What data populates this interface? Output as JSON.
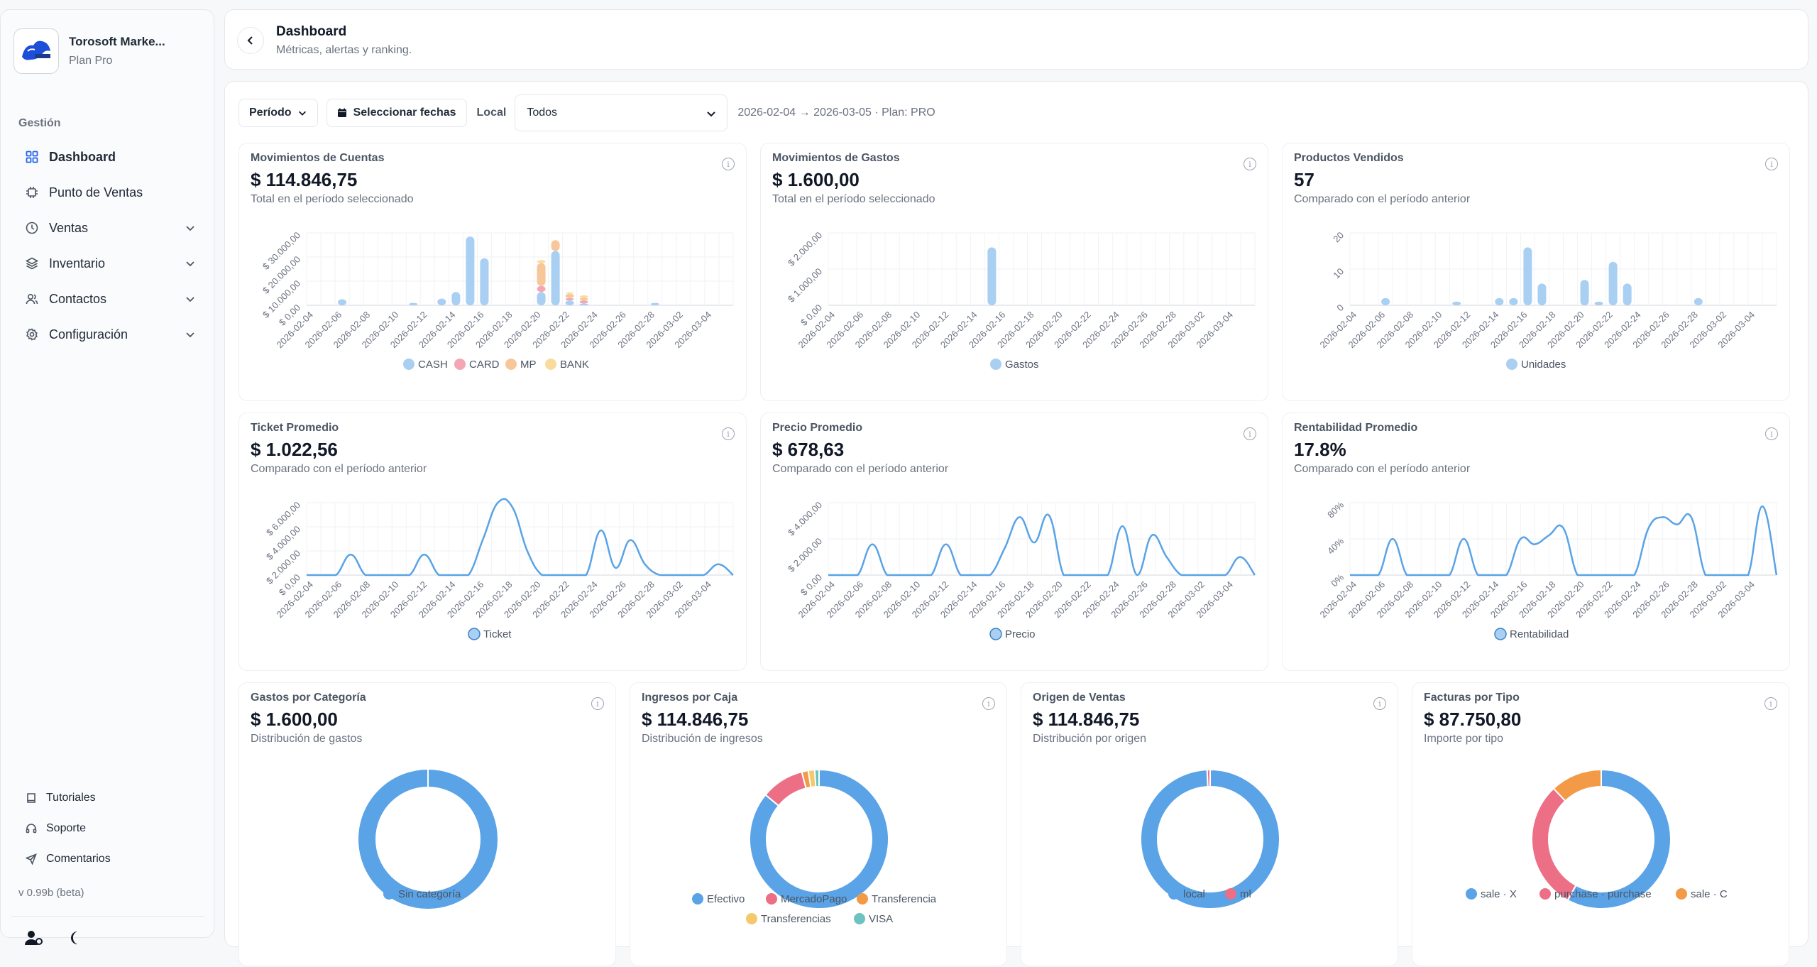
{
  "sidebar": {
    "brand_name": "Torosoft Marke...",
    "brand_plan": "Plan Pro",
    "section": "Gestión",
    "items": [
      {
        "label": "Dashboard",
        "icon": "grid-icon",
        "active": true,
        "expandable": false
      },
      {
        "label": "Punto de Ventas",
        "icon": "cpu-icon",
        "active": false,
        "expandable": false
      },
      {
        "label": "Ventas",
        "icon": "clock-icon",
        "active": false,
        "expandable": true
      },
      {
        "label": "Inventario",
        "icon": "layers-icon",
        "active": false,
        "expandable": true
      },
      {
        "label": "Contactos",
        "icon": "users-icon",
        "active": false,
        "expandable": true
      },
      {
        "label": "Configuración",
        "icon": "gear-icon",
        "active": false,
        "expandable": true
      }
    ],
    "footer": [
      {
        "label": "Tutoriales",
        "icon": "book-icon"
      },
      {
        "label": "Soporte",
        "icon": "headset-icon"
      },
      {
        "label": "Comentarios",
        "icon": "send-icon"
      }
    ],
    "version": "v 0.99b (beta)"
  },
  "header": {
    "title": "Dashboard",
    "subtitle": "Métricas, alertas y ranking."
  },
  "toolbar": {
    "period_label": "Período",
    "dates_label": "Seleccionar fechas",
    "local_label": "Local",
    "local_value": "Todos",
    "range_text": "2026-02-04 → 2026-03-05 · Plan: PRO"
  },
  "colors": {
    "blue": "#5aa3e6",
    "blue_light": "#a9cff3",
    "pink": "#ec6f85",
    "orange": "#f39a47",
    "yellow": "#f5c96b",
    "teal": "#6cc3bf",
    "accent": "#2563eb"
  },
  "dates": [
    "2026-02-04",
    "2026-02-06",
    "2026-02-08",
    "2026-02-10",
    "2026-02-12",
    "2026-02-14",
    "2026-02-16",
    "2026-02-18",
    "2026-02-20",
    "2026-02-22",
    "2026-02-24",
    "2026-02-26",
    "2026-02-28",
    "2026-03-02",
    "2026-03-04"
  ],
  "cards": {
    "cuentas": {
      "title": "Movimientos de Cuentas",
      "value": "$ 114.846,75",
      "sub": "Total en el período seleccionado"
    },
    "gastos": {
      "title": "Movimientos de Gastos",
      "value": "$ 1.600,00",
      "sub": "Total en el período seleccionado"
    },
    "productos": {
      "title": "Productos Vendidos",
      "value": "57",
      "sub": "Comparado con el período anterior"
    },
    "ticket": {
      "title": "Ticket Promedio",
      "value": "$ 1.022,56",
      "sub": "Comparado con el período anterior"
    },
    "precio": {
      "title": "Precio Promedio",
      "value": "$ 678,63",
      "sub": "Comparado con el período anterior"
    },
    "rentabilidad": {
      "title": "Rentabilidad Promedio",
      "value": "17.8%",
      "sub": "Comparado con el período anterior"
    },
    "gastos_cat": {
      "title": "Gastos por Categoría",
      "value": "$ 1.600,00",
      "sub": "Distribución de gastos"
    },
    "ingresos_caja": {
      "title": "Ingresos por Caja",
      "value": "$ 114.846,75",
      "sub": "Distribución de ingresos"
    },
    "origen": {
      "title": "Origen de Ventas",
      "value": "$ 114.846,75",
      "sub": "Distribución por origen"
    },
    "facturas": {
      "title": "Facturas por Tipo",
      "value": "$ 87.750,80",
      "sub": "Importe por tipo"
    }
  },
  "chart_data": [
    {
      "id": "cuentas",
      "type": "bar",
      "stacked": true,
      "yticks": [
        "$ 0,00",
        "$ 10.000,00",
        "$ 20.000,00",
        "$ 30.000,00"
      ],
      "ylim": [
        0,
        30000
      ],
      "series": [
        {
          "name": "CASH",
          "color": "#a9cff3",
          "points": [
            [
              2,
              2500
            ],
            [
              7,
              1000
            ],
            [
              9,
              2800
            ],
            [
              10,
              5500
            ],
            [
              11,
              28500
            ],
            [
              12,
              19500
            ],
            [
              16,
              5500
            ],
            [
              17,
              22500
            ],
            [
              18,
              2000
            ],
            [
              19,
              800
            ],
            [
              24,
              1000
            ]
          ]
        },
        {
          "name": "CARD",
          "color": "#f4a6b4",
          "points": [
            [
              16,
              2500
            ],
            [
              18,
              1000
            ],
            [
              19,
              1200
            ]
          ]
        },
        {
          "name": "MP",
          "color": "#f7c79a",
          "points": [
            [
              16,
              9500
            ],
            [
              17,
              4500
            ],
            [
              18,
              1800
            ],
            [
              19,
              1200
            ]
          ]
        },
        {
          "name": "BANK",
          "color": "#f9dc9c",
          "points": [
            [
              16,
              1200
            ],
            [
              18,
              600
            ],
            [
              19,
              900
            ]
          ]
        }
      ]
    },
    {
      "id": "gastos",
      "type": "bar",
      "yticks": [
        "$ 0,00",
        "$ 1.000,00",
        "$ 2.000,00"
      ],
      "ylim": [
        0,
        2000
      ],
      "series": [
        {
          "name": "Gastos",
          "color": "#a9cff3",
          "points": [
            [
              11,
              1600
            ]
          ]
        }
      ]
    },
    {
      "id": "productos",
      "type": "bar",
      "yticks": [
        "0",
        "10",
        "20"
      ],
      "ylim": [
        0,
        20
      ],
      "series": [
        {
          "name": "Unidades",
          "color": "#a9cff3",
          "points": [
            [
              2,
              2
            ],
            [
              7,
              1
            ],
            [
              10,
              2
            ],
            [
              11,
              2
            ],
            [
              12,
              16
            ],
            [
              13,
              6
            ],
            [
              16,
              7
            ],
            [
              17,
              1
            ],
            [
              18,
              12
            ],
            [
              19,
              6
            ],
            [
              24,
              2
            ]
          ]
        }
      ]
    },
    {
      "id": "ticket",
      "type": "line",
      "yticks": [
        "$ 0,00",
        "$ 2.000,00",
        "$ 4.000,00",
        "$ 6.000,00"
      ],
      "ylim": [
        0,
        6000
      ],
      "series": [
        {
          "name": "Ticket",
          "color": "#5aa3e6",
          "values": [
            0,
            0,
            0,
            1700,
            0,
            0,
            0,
            0,
            1700,
            0,
            0,
            0,
            3000,
            6000,
            5600,
            2000,
            0,
            0,
            0,
            0,
            3700,
            600,
            2900,
            900,
            0,
            0,
            0,
            0,
            900,
            0
          ]
        }
      ]
    },
    {
      "id": "precio",
      "type": "line",
      "yticks": [
        "$ 0,00",
        "$ 2.000,00",
        "$ 4.000,00"
      ],
      "ylim": [
        0,
        4000
      ],
      "series": [
        {
          "name": "Precio",
          "color": "#5aa3e6",
          "values": [
            0,
            0,
            0,
            1700,
            0,
            0,
            0,
            0,
            1700,
            0,
            0,
            0,
            1500,
            3200,
            1800,
            3300,
            0,
            0,
            0,
            0,
            2700,
            0,
            2200,
            1000,
            0,
            0,
            0,
            0,
            1000,
            0
          ]
        }
      ]
    },
    {
      "id": "rentabilidad",
      "type": "line",
      "yticks": [
        "0%",
        "40%",
        "80%"
      ],
      "ylim": [
        0,
        80
      ],
      "series": [
        {
          "name": "Rentabilidad",
          "color": "#5aa3e6",
          "values": [
            0,
            0,
            0,
            40,
            0,
            0,
            0,
            0,
            40,
            0,
            0,
            0,
            40,
            34,
            44,
            52,
            0,
            0,
            0,
            0,
            0,
            52,
            64,
            56,
            64,
            0,
            0,
            0,
            0,
            76,
            0
          ]
        }
      ]
    },
    {
      "id": "gastos_cat",
      "type": "pie",
      "slices": [
        {
          "name": "Sin categoría",
          "value": 100,
          "color": "#5aa3e6"
        }
      ]
    },
    {
      "id": "ingresos_caja",
      "type": "pie",
      "slices": [
        {
          "name": "Efectivo",
          "value": 86,
          "color": "#5aa3e6"
        },
        {
          "name": "MercadoPago",
          "value": 10,
          "color": "#ec6f85"
        },
        {
          "name": "Transferencia",
          "value": 1.5,
          "color": "#f39a47"
        },
        {
          "name": "Transferencias",
          "value": 1.5,
          "color": "#f5c96b"
        },
        {
          "name": "VISA",
          "value": 1,
          "color": "#6cc3bf"
        }
      ]
    },
    {
      "id": "origen",
      "type": "pie",
      "slices": [
        {
          "name": "local",
          "value": 99.3,
          "color": "#5aa3e6"
        },
        {
          "name": "ml",
          "value": 0.7,
          "color": "#ec6f85"
        }
      ]
    },
    {
      "id": "facturas",
      "type": "pie",
      "slices": [
        {
          "name": "sale · X",
          "value": 58,
          "color": "#5aa3e6"
        },
        {
          "name": "purchase · purchase",
          "value": 30,
          "color": "#ec6f85"
        },
        {
          "name": "sale · C",
          "value": 12,
          "color": "#f39a47"
        }
      ]
    }
  ]
}
